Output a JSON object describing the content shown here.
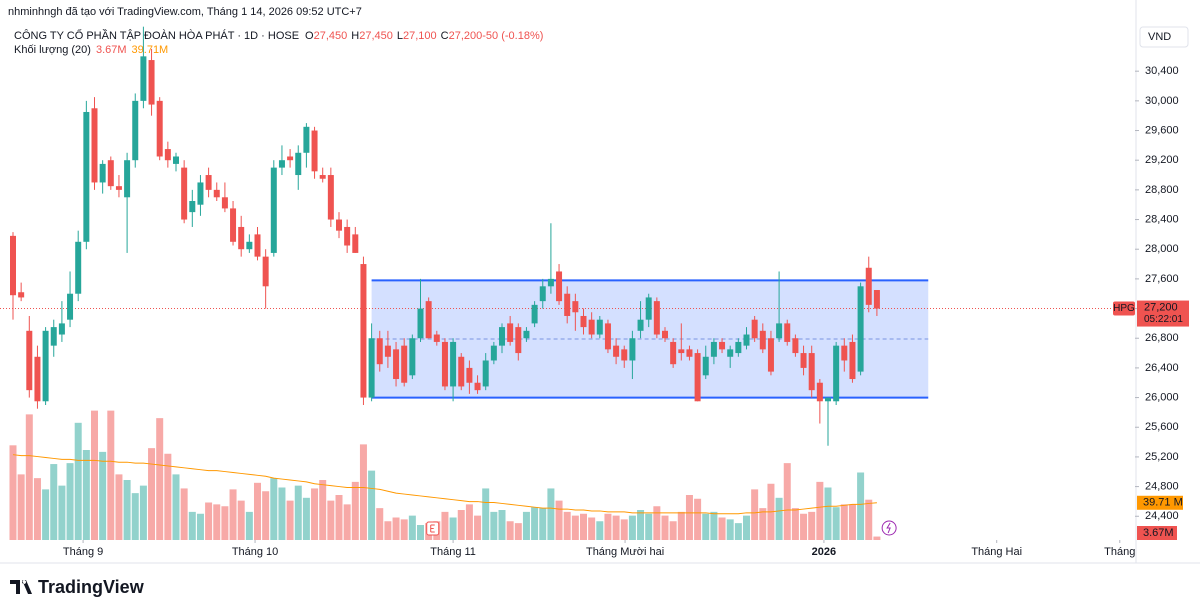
{
  "credit": "nhminhngh đã tạo với TradingView.com, Tháng 1 14, 2026 09:52 UTC+7",
  "brand": "TradingView",
  "chart_data": {
    "type": "candlestick",
    "title": "CÔNG TY CỔ PHẦN TẬP ĐOÀN HÒA PHÁT · 1D · HOSE",
    "ohlc_header": [
      [
        "O",
        "27,450"
      ],
      [
        "H",
        "27,450"
      ],
      [
        "L",
        "27,100"
      ],
      [
        "C",
        "27,200"
      ],
      [
        "",
        "-50 (-0.18%)"
      ]
    ],
    "volume_header": [
      "Khối lượng (20)",
      "3.67M",
      "39.71M"
    ],
    "currency": "VND",
    "symbol": "HPG",
    "last_price": {
      "value": 27200,
      "label": "27,200"
    },
    "countdown": "05:22:01",
    "up_color": "#26a69a",
    "down_color": "#ef5350",
    "ylim": [
      24080,
      31090
    ],
    "yticks": [
      {
        "value": 24400,
        "label": "24,400"
      },
      {
        "value": 24800,
        "label": "24,800"
      },
      {
        "value": 25200,
        "label": "25,200"
      },
      {
        "value": 25600,
        "label": "25,600"
      },
      {
        "value": 26000,
        "label": "26,000"
      },
      {
        "value": 26400,
        "label": "26,400"
      },
      {
        "value": 26800,
        "label": "26,800"
      },
      {
        "value": 27200,
        "label": "27,200"
      },
      {
        "value": 27600,
        "label": "27,600"
      },
      {
        "value": 28000,
        "label": "28,000"
      },
      {
        "value": 28400,
        "label": "28,400"
      },
      {
        "value": 28800,
        "label": "28,800"
      },
      {
        "value": 29200,
        "label": "29,200"
      },
      {
        "value": 29600,
        "label": "29,600"
      },
      {
        "value": 30000,
        "label": "30,000"
      },
      {
        "value": 30400,
        "label": "30,400"
      }
    ],
    "xticks": [
      {
        "value": 8.6,
        "label": "Tháng 9"
      },
      {
        "value": 29.7,
        "label": "Tháng 10"
      },
      {
        "value": 54,
        "label": "Tháng 11"
      },
      {
        "value": 75.1,
        "label": "Tháng Mười hai"
      },
      {
        "value": 99.5,
        "label": "2026"
      },
      {
        "value": 120.7,
        "label": "Tháng Hai"
      },
      {
        "value": 135.8,
        "label": "Tháng"
      }
    ],
    "box": {
      "from": 44,
      "to": 112.3,
      "top": 27580,
      "bottom": 26000,
      "mid": 26790
    },
    "ohlc": [
      [
        28180,
        28230,
        27050,
        27380
      ],
      [
        27420,
        27550,
        27300,
        27350
      ],
      [
        26900,
        27100,
        26000,
        26100
      ],
      [
        26550,
        26700,
        25850,
        25950
      ],
      [
        25950,
        26950,
        25900,
        26900
      ],
      [
        26700,
        27050,
        26550,
        26950
      ],
      [
        26850,
        27300,
        26750,
        27000
      ],
      [
        27050,
        27700,
        26950,
        27400
      ],
      [
        27400,
        28250,
        27300,
        28100
      ],
      [
        28100,
        30000,
        28000,
        29850
      ],
      [
        29900,
        30050,
        28800,
        28900
      ],
      [
        28900,
        29200,
        28750,
        29150
      ],
      [
        29200,
        29250,
        28800,
        28850
      ],
      [
        28850,
        29000,
        28700,
        28800
      ],
      [
        28700,
        29300,
        27950,
        29200
      ],
      [
        29200,
        30100,
        29100,
        30000
      ],
      [
        30000,
        31000,
        29900,
        30600
      ],
      [
        30550,
        30700,
        29800,
        29950
      ],
      [
        30000,
        30050,
        29200,
        29250
      ],
      [
        29350,
        29450,
        29100,
        29200
      ],
      [
        29150,
        29300,
        29050,
        29250
      ],
      [
        29100,
        29200,
        28350,
        28400
      ],
      [
        28500,
        28800,
        28300,
        28650
      ],
      [
        28600,
        29000,
        28450,
        28900
      ],
      [
        29000,
        29100,
        28700,
        28800
      ],
      [
        28800,
        28900,
        28650,
        28700
      ],
      [
        28700,
        28900,
        28500,
        28550
      ],
      [
        28550,
        28650,
        28050,
        28100
      ],
      [
        28300,
        28450,
        27900,
        28000
      ],
      [
        28000,
        28200,
        27950,
        28100
      ],
      [
        28200,
        28300,
        27850,
        27900
      ],
      [
        27900,
        28000,
        27200,
        27500
      ],
      [
        27950,
        29200,
        27900,
        29100
      ],
      [
        29100,
        29400,
        29000,
        29200
      ],
      [
        29250,
        29350,
        29100,
        29200
      ],
      [
        29000,
        29400,
        28800,
        29300
      ],
      [
        29300,
        29700,
        29100,
        29650
      ],
      [
        29600,
        29650,
        28950,
        29050
      ],
      [
        29000,
        29100,
        28900,
        28950
      ],
      [
        29000,
        29100,
        28300,
        28400
      ],
      [
        28400,
        28500,
        28150,
        28250
      ],
      [
        28300,
        28400,
        27950,
        28050
      ],
      [
        28200,
        28300,
        27950,
        27950
      ],
      [
        27800,
        27900,
        25900,
        26000
      ],
      [
        26000,
        27000,
        25950,
        26800
      ],
      [
        26800,
        26900,
        26350,
        26450
      ],
      [
        26700,
        26900,
        26400,
        26550
      ],
      [
        26650,
        26750,
        26150,
        26250
      ],
      [
        26700,
        26800,
        26150,
        26200
      ],
      [
        26300,
        26850,
        26250,
        26800
      ],
      [
        26800,
        27600,
        26750,
        27200
      ],
      [
        27300,
        27350,
        26800,
        26800
      ],
      [
        26850,
        26900,
        26700,
        26750
      ],
      [
        26750,
        26800,
        26100,
        26150
      ],
      [
        26150,
        26800,
        25950,
        26750
      ],
      [
        26550,
        26600,
        26100,
        26150
      ],
      [
        26400,
        26500,
        26050,
        26200
      ],
      [
        26200,
        26300,
        26050,
        26100
      ],
      [
        26150,
        26600,
        26100,
        26500
      ],
      [
        26500,
        26750,
        26450,
        26700
      ],
      [
        26700,
        27000,
        26600,
        26950
      ],
      [
        27000,
        27100,
        26700,
        26750
      ],
      [
        26950,
        27000,
        26500,
        26600
      ],
      [
        26800,
        26950,
        26750,
        26900
      ],
      [
        27000,
        27300,
        26950,
        27250
      ],
      [
        27300,
        27600,
        27200,
        27500
      ],
      [
        27500,
        28350,
        27400,
        27600
      ],
      [
        27700,
        27800,
        27250,
        27300
      ],
      [
        27400,
        27500,
        27000,
        27100
      ],
      [
        27300,
        27400,
        26900,
        27150
      ],
      [
        27100,
        27200,
        26850,
        26950
      ],
      [
        27050,
        27150,
        26800,
        26850
      ],
      [
        26850,
        27100,
        26800,
        27050
      ],
      [
        27000,
        27050,
        26600,
        26650
      ],
      [
        26700,
        26800,
        26450,
        26550
      ],
      [
        26650,
        26700,
        26400,
        26500
      ],
      [
        26500,
        26900,
        26250,
        26800
      ],
      [
        26900,
        27300,
        26800,
        27050
      ],
      [
        27050,
        27400,
        26950,
        27350
      ],
      [
        27300,
        27350,
        26800,
        26850
      ],
      [
        26900,
        26950,
        26750,
        26800
      ],
      [
        26750,
        26800,
        26400,
        26450
      ],
      [
        26650,
        27000,
        26500,
        26600
      ],
      [
        26650,
        26700,
        26500,
        26550
      ],
      [
        26600,
        26650,
        25950,
        25950
      ],
      [
        26300,
        26700,
        26250,
        26550
      ],
      [
        26550,
        26800,
        26450,
        26750
      ],
      [
        26750,
        26800,
        26600,
        26650
      ],
      [
        26550,
        26700,
        26400,
        26650
      ],
      [
        26600,
        26800,
        26550,
        26750
      ],
      [
        26700,
        26950,
        26650,
        26850
      ],
      [
        27050,
        27100,
        26750,
        26800
      ],
      [
        26900,
        27000,
        26600,
        26650
      ],
      [
        26800,
        26900,
        26300,
        26350
      ],
      [
        26800,
        27700,
        26750,
        27000
      ],
      [
        27000,
        27050,
        26700,
        26750
      ],
      [
        26800,
        26850,
        26550,
        26600
      ],
      [
        26600,
        26700,
        26300,
        26400
      ],
      [
        26600,
        26700,
        26000,
        26100
      ],
      [
        26200,
        26250,
        25650,
        25950
      ],
      [
        25950,
        26000,
        25350,
        26000
      ],
      [
        25950,
        26750,
        25900,
        26700
      ],
      [
        26700,
        26800,
        26350,
        26500
      ],
      [
        26750,
        26850,
        26200,
        26250
      ],
      [
        26350,
        27550,
        26300,
        27500
      ],
      [
        27750,
        27900,
        27150,
        27250
      ],
      [
        27450,
        27450,
        27100,
        27200
      ]
    ],
    "vlim": [
      0,
      160
    ],
    "volume": [
      101,
      70,
      134,
      66,
      54,
      81,
      58,
      82,
      125,
      96,
      138,
      94,
      138,
      70,
      64,
      50,
      58,
      98,
      130,
      92,
      70,
      55,
      30,
      28,
      40,
      38,
      36,
      54,
      42,
      30,
      61,
      52,
      66,
      56,
      42,
      58,
      45,
      55,
      64,
      42,
      48,
      38,
      62,
      102,
      74,
      34,
      20,
      24,
      22,
      26,
      16,
      18,
      20,
      30,
      24,
      32,
      38,
      26,
      55,
      30,
      32,
      20,
      18,
      30,
      35,
      34,
      55,
      42,
      30,
      26,
      28,
      24,
      20,
      28,
      26,
      22,
      26,
      32,
      28,
      36,
      26,
      20,
      30,
      48,
      44,
      28,
      30,
      24,
      22,
      18,
      26,
      54,
      34,
      60,
      45,
      82,
      34,
      28,
      30,
      62,
      56,
      35,
      38,
      38,
      72,
      43,
      3.67
    ],
    "volume_ma_color": "#ff9800",
    "volume_ma": [
      91,
      90,
      90,
      89,
      88,
      87,
      86,
      86,
      85,
      85,
      85,
      84,
      84,
      83,
      83,
      82,
      82,
      81,
      80,
      79,
      78,
      77,
      76,
      75,
      74,
      74,
      73,
      72,
      71,
      70,
      69,
      68,
      66,
      65,
      64,
      63,
      62,
      60,
      59,
      58,
      57,
      56,
      56,
      56,
      55,
      54,
      52,
      50,
      49,
      48,
      47,
      46,
      45,
      44,
      43,
      42,
      41,
      41,
      40,
      40,
      39,
      38,
      37,
      36,
      35,
      34,
      34,
      33,
      33,
      32,
      32,
      31,
      31,
      30,
      30,
      30,
      29,
      29,
      29,
      29,
      29,
      29,
      29,
      29,
      29,
      29,
      28,
      28,
      28,
      28,
      29,
      29,
      30,
      30,
      31,
      32,
      32,
      33,
      34,
      35,
      36,
      36,
      37,
      38,
      38,
      39,
      39.71
    ],
    "volume_axis_labels": [
      "39.71 M",
      "3.67M"
    ]
  }
}
